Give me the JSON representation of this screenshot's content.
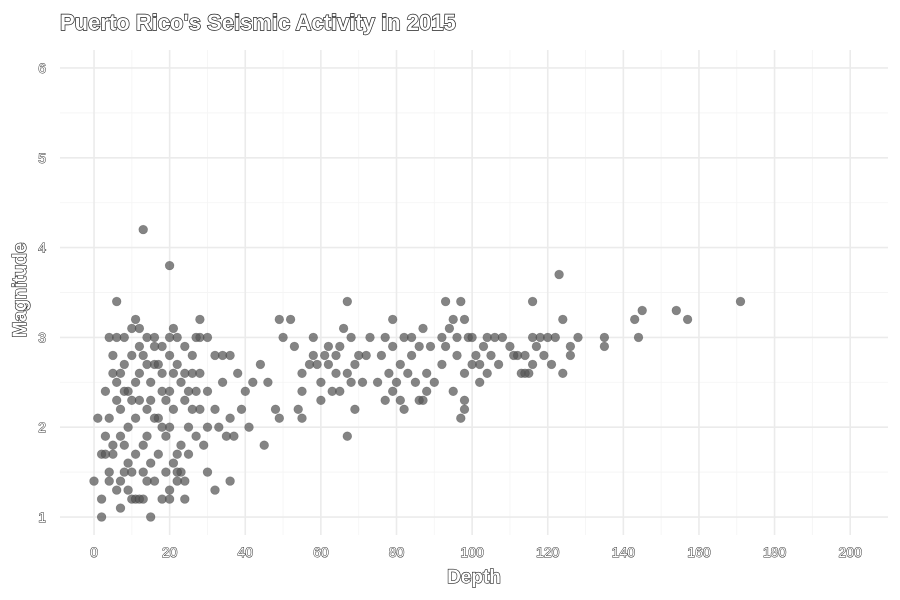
{
  "chart_data": {
    "type": "scatter",
    "title": "Puerto Rico's Seismic Activity in 2015",
    "xlabel": "Depth",
    "ylabel": "Magnitude",
    "xlim": [
      -9,
      210
    ],
    "ylim": [
      0.8,
      6.2
    ],
    "x_ticks": [
      0,
      20,
      40,
      60,
      80,
      100,
      120,
      140,
      160,
      180,
      200
    ],
    "y_ticks": [
      1,
      2,
      3,
      4,
      5,
      6
    ],
    "grid": true,
    "point_color": "#555555",
    "points": [
      [
        13,
        4.2
      ],
      [
        20,
        3.8
      ],
      [
        6,
        3.4
      ],
      [
        28,
        3.2
      ],
      [
        49,
        3.2
      ],
      [
        52,
        3.2
      ],
      [
        67,
        3.4
      ],
      [
        93,
        3.4
      ],
      [
        97,
        3.4
      ],
      [
        116,
        3.4
      ],
      [
        123,
        3.7
      ],
      [
        124,
        3.2
      ],
      [
        143,
        3.2
      ],
      [
        145,
        3.3
      ],
      [
        154,
        3.3
      ],
      [
        157,
        3.2
      ],
      [
        171,
        3.4
      ],
      [
        135,
        3.0
      ],
      [
        135,
        2.9
      ],
      [
        144,
        3.0
      ],
      [
        4,
        3.0
      ],
      [
        6,
        3.0
      ],
      [
        8,
        3.0
      ],
      [
        10,
        3.1
      ],
      [
        12,
        3.1
      ],
      [
        14,
        3.0
      ],
      [
        16,
        3.0
      ],
      [
        18,
        2.9
      ],
      [
        20,
        3.0
      ],
      [
        22,
        3.0
      ],
      [
        24,
        2.9
      ],
      [
        26,
        2.8
      ],
      [
        28,
        3.0
      ],
      [
        30,
        3.0
      ],
      [
        32,
        2.8
      ],
      [
        34,
        2.8
      ],
      [
        36,
        2.8
      ],
      [
        11,
        3.2
      ],
      [
        21,
        3.1
      ],
      [
        27,
        3.0
      ],
      [
        3,
        2.4
      ],
      [
        5,
        2.6
      ],
      [
        7,
        2.2
      ],
      [
        9,
        2.0
      ],
      [
        11,
        2.5
      ],
      [
        13,
        2.8
      ],
      [
        15,
        2.3
      ],
      [
        17,
        2.1
      ],
      [
        19,
        1.9
      ],
      [
        21,
        2.2
      ],
      [
        23,
        2.5
      ],
      [
        25,
        2.0
      ],
      [
        27,
        2.4
      ],
      [
        29,
        1.8
      ],
      [
        4,
        2.1
      ],
      [
        6,
        2.5
      ],
      [
        8,
        1.8
      ],
      [
        10,
        2.3
      ],
      [
        12,
        2.6
      ],
      [
        14,
        1.9
      ],
      [
        16,
        2.7
      ],
      [
        18,
        2.4
      ],
      [
        20,
        2.0
      ],
      [
        22,
        1.7
      ],
      [
        24,
        2.3
      ],
      [
        26,
        2.6
      ],
      [
        28,
        2.2
      ],
      [
        30,
        2.0
      ],
      [
        5,
        2.8
      ],
      [
        7,
        2.6
      ],
      [
        9,
        2.4
      ],
      [
        11,
        2.1
      ],
      [
        13,
        1.8
      ],
      [
        15,
        2.5
      ],
      [
        17,
        2.7
      ],
      [
        19,
        2.3
      ],
      [
        21,
        2.6
      ],
      [
        23,
        1.8
      ],
      [
        25,
        2.4
      ],
      [
        27,
        1.9
      ],
      [
        3,
        1.9
      ],
      [
        5,
        1.7
      ],
      [
        7,
        1.9
      ],
      [
        9,
        1.6
      ],
      [
        11,
        1.7
      ],
      [
        13,
        1.5
      ],
      [
        15,
        1.6
      ],
      [
        17,
        1.7
      ],
      [
        19,
        1.5
      ],
      [
        21,
        1.6
      ],
      [
        23,
        1.5
      ],
      [
        25,
        1.7
      ],
      [
        8,
        2.7
      ],
      [
        10,
        2.8
      ],
      [
        12,
        2.9
      ],
      [
        14,
        2.7
      ],
      [
        16,
        2.9
      ],
      [
        18,
        2.6
      ],
      [
        20,
        2.8
      ],
      [
        22,
        2.7
      ],
      [
        6,
        2.3
      ],
      [
        8,
        2.4
      ],
      [
        12,
        2.3
      ],
      [
        14,
        2.2
      ],
      [
        16,
        2.1
      ],
      [
        18,
        2.0
      ],
      [
        20,
        2.4
      ],
      [
        24,
        2.6
      ],
      [
        26,
        2.2
      ],
      [
        28,
        2.6
      ],
      [
        30,
        2.4
      ],
      [
        32,
        2.2
      ],
      [
        34,
        2.5
      ],
      [
        36,
        2.1
      ],
      [
        38,
        2.6
      ],
      [
        40,
        2.4
      ],
      [
        42,
        2.5
      ],
      [
        44,
        2.7
      ],
      [
        46,
        2.5
      ],
      [
        48,
        2.2
      ],
      [
        33,
        2.0
      ],
      [
        35,
        1.9
      ],
      [
        37,
        1.9
      ],
      [
        39,
        2.2
      ],
      [
        41,
        2.0
      ],
      [
        45,
        1.8
      ],
      [
        49,
        2.1
      ],
      [
        55,
        2.1
      ],
      [
        36,
        1.4
      ],
      [
        32,
        1.3
      ],
      [
        30,
        1.5
      ],
      [
        24,
        1.4
      ],
      [
        0,
        1.4
      ],
      [
        2,
        1.2
      ],
      [
        2,
        1.0
      ],
      [
        4,
        1.4
      ],
      [
        6,
        1.3
      ],
      [
        7,
        1.1
      ],
      [
        9,
        1.3
      ],
      [
        10,
        1.2
      ],
      [
        11,
        1.2
      ],
      [
        12,
        1.2
      ],
      [
        13,
        1.2
      ],
      [
        15,
        1.0
      ],
      [
        16,
        1.4
      ],
      [
        18,
        1.2
      ],
      [
        20,
        1.3
      ],
      [
        20,
        1.2
      ],
      [
        22,
        1.4
      ],
      [
        24,
        1.2
      ],
      [
        1,
        2.1
      ],
      [
        2,
        1.7
      ],
      [
        3,
        1.7
      ],
      [
        4,
        1.5
      ],
      [
        5,
        1.8
      ],
      [
        7,
        1.4
      ],
      [
        8,
        1.5
      ],
      [
        10,
        1.5
      ],
      [
        14,
        1.4
      ],
      [
        22,
        1.5
      ],
      [
        50,
        3.0
      ],
      [
        53,
        2.9
      ],
      [
        55,
        2.6
      ],
      [
        55,
        2.4
      ],
      [
        57,
        2.7
      ],
      [
        58,
        2.8
      ],
      [
        58,
        3.0
      ],
      [
        59,
        2.7
      ],
      [
        60,
        2.5
      ],
      [
        60,
        2.3
      ],
      [
        61,
        2.8
      ],
      [
        62,
        2.9
      ],
      [
        62,
        2.7
      ],
      [
        63,
        2.4
      ],
      [
        64,
        2.8
      ],
      [
        64,
        2.6
      ],
      [
        65,
        2.9
      ],
      [
        65,
        2.4
      ],
      [
        66,
        3.1
      ],
      [
        67,
        2.6
      ],
      [
        68,
        3.0
      ],
      [
        68,
        2.5
      ],
      [
        69,
        2.7
      ],
      [
        69,
        2.2
      ],
      [
        70,
        2.8
      ],
      [
        71,
        2.5
      ],
      [
        72,
        2.8
      ],
      [
        73,
        3.0
      ],
      [
        75,
        2.5
      ],
      [
        76,
        2.8
      ],
      [
        77,
        3.0
      ],
      [
        77,
        2.3
      ],
      [
        78,
        2.6
      ],
      [
        79,
        2.9
      ],
      [
        79,
        3.2
      ],
      [
        80,
        2.5
      ],
      [
        81,
        2.7
      ],
      [
        81,
        2.3
      ],
      [
        82,
        3.0
      ],
      [
        83,
        2.6
      ],
      [
        84,
        3.0
      ],
      [
        84,
        2.8
      ],
      [
        85,
        2.5
      ],
      [
        86,
        2.9
      ],
      [
        86,
        2.3
      ],
      [
        87,
        3.1
      ],
      [
        88,
        2.6
      ],
      [
        89,
        2.9
      ],
      [
        90,
        2.5
      ],
      [
        92,
        3.0
      ],
      [
        92,
        2.7
      ],
      [
        94,
        3.1
      ],
      [
        95,
        3.2
      ],
      [
        96,
        3.0
      ],
      [
        96,
        2.8
      ],
      [
        98,
        2.6
      ],
      [
        98,
        3.2
      ],
      [
        98,
        2.3
      ],
      [
        98,
        2.2
      ],
      [
        99,
        3.0
      ],
      [
        100,
        3.0
      ],
      [
        101,
        2.8
      ],
      [
        102,
        2.7
      ],
      [
        103,
        2.9
      ],
      [
        104,
        3.0
      ],
      [
        104,
        2.6
      ],
      [
        105,
        2.8
      ],
      [
        106,
        3.0
      ],
      [
        107,
        2.7
      ],
      [
        108,
        3.0
      ],
      [
        110,
        2.9
      ],
      [
        112,
        2.8
      ],
      [
        113,
        2.6
      ],
      [
        114,
        2.8
      ],
      [
        115,
        2.6
      ],
      [
        116,
        2.7
      ],
      [
        116,
        3.0
      ],
      [
        117,
        2.9
      ],
      [
        118,
        3.0
      ],
      [
        119,
        2.8
      ],
      [
        120,
        3.0
      ],
      [
        121,
        2.7
      ],
      [
        122,
        3.0
      ],
      [
        126,
        2.8
      ],
      [
        126,
        2.9
      ],
      [
        128,
        3.0
      ],
      [
        67,
        1.9
      ],
      [
        54,
        2.2
      ],
      [
        79,
        2.4
      ],
      [
        82,
        2.2
      ],
      [
        87,
        2.3
      ],
      [
        88,
        2.4
      ],
      [
        93,
        2.9
      ],
      [
        95,
        2.4
      ],
      [
        100,
        2.7
      ],
      [
        102,
        2.5
      ],
      [
        111,
        2.8
      ],
      [
        114,
        2.6
      ],
      [
        124,
        2.6
      ],
      [
        97,
        2.1
      ]
    ]
  }
}
